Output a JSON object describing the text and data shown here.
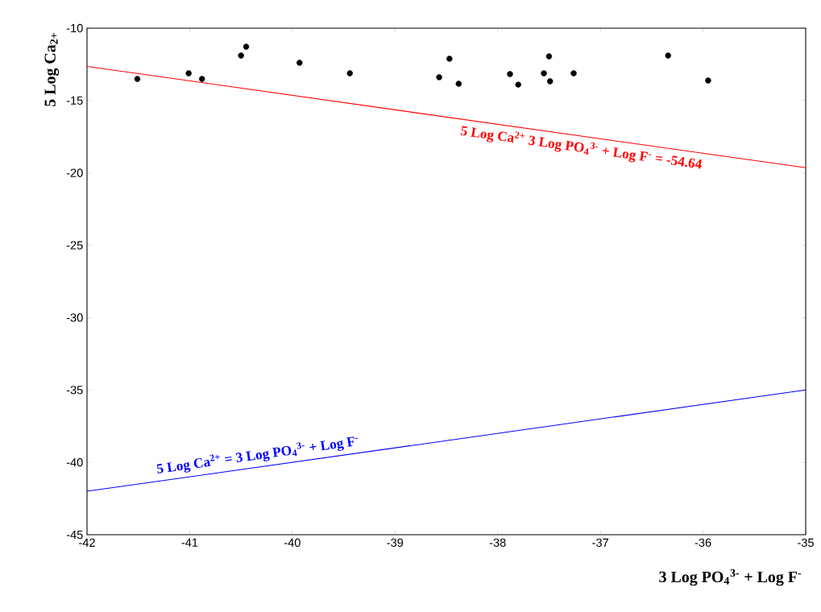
{
  "chart_data": {
    "type": "scatter",
    "xlabel": "3 Log PO$_{4}$$^{3-}$ + Log F$^{-}$",
    "ylabel": "5 Log Ca$_{2+}$",
    "xlim": [
      -42,
      -35
    ],
    "ylim": [
      -45,
      -10
    ],
    "xticks": [
      -42,
      -41,
      -40,
      -39,
      -38,
      -37,
      -36,
      -35
    ],
    "yticks": [
      -45,
      -40,
      -35,
      -30,
      -25,
      -20,
      -15,
      -10
    ],
    "grid": false,
    "series": [
      {
        "color": "#000000",
        "x": [
          -41.51,
          -41.01,
          -40.88,
          -40.5,
          -40.45,
          -39.93,
          -39.44,
          -38.57,
          -38.47,
          -38.38,
          -37.88,
          -37.8,
          -37.55,
          -37.5,
          -37.49,
          -37.26,
          -36.34,
          -35.95
        ],
        "values": [
          -13.51,
          -13.12,
          -13.51,
          -11.89,
          -11.28,
          -12.39,
          -13.12,
          -13.39,
          -12.11,
          -13.84,
          -13.17,
          -13.9,
          -13.12,
          -11.95,
          -13.67,
          -13.12,
          -11.89,
          -13.62
        ]
      },
      {
        "type": "line",
        "color": "#ff0000",
        "x": [
          -42,
          -35
        ],
        "values": [
          -12.64,
          -19.64
        ]
      },
      {
        "type": "line",
        "color": "#0000ff",
        "x": [
          -42,
          -35
        ],
        "values": [
          -42,
          -35
        ]
      }
    ],
    "annotations": [
      "5 Log Ca$^{2+}$ 3 Log PO$_{4}$$^{3-}$ + Log F$^{-}$ = -54.64",
      "5 Log Ca$^{2+}$ = 3 Log PO$_{4}$$^{3-}$ + Log F$^{-}$"
    ]
  }
}
